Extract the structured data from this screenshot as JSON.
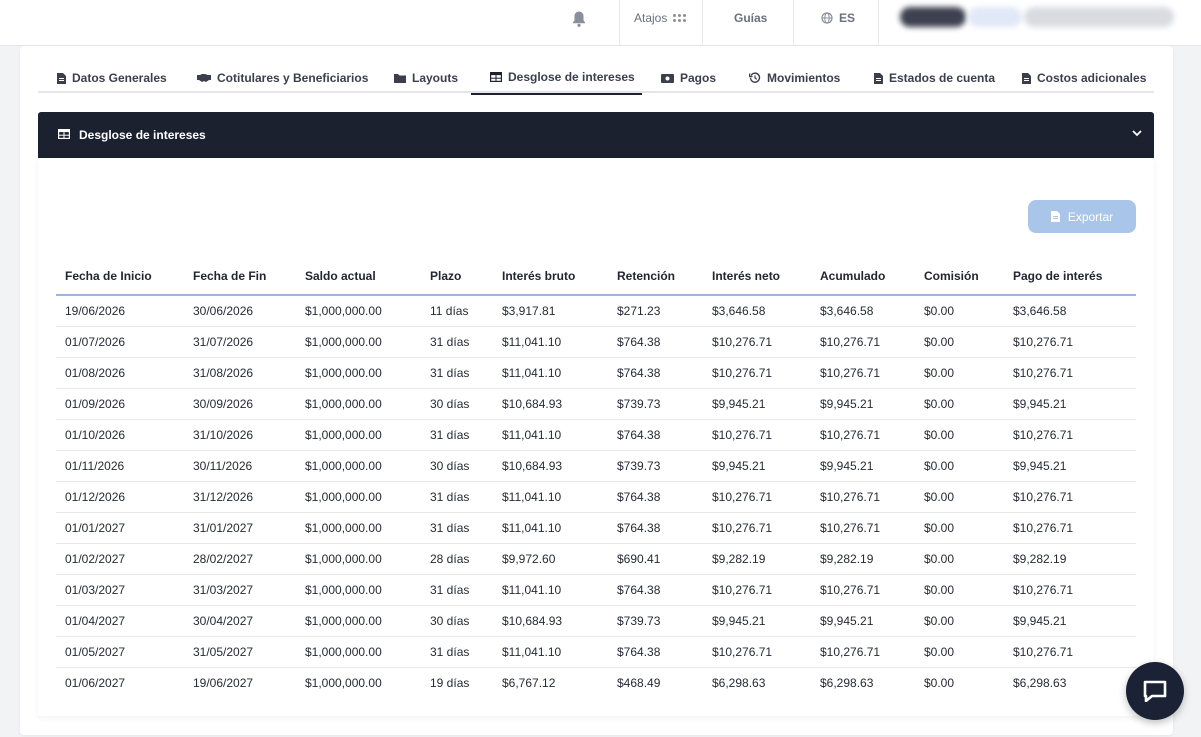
{
  "topbar": {
    "shortcuts_label": "Atajos",
    "guides_label": "Guías",
    "language_label": "ES"
  },
  "tabs": [
    {
      "label": "Datos Generales",
      "icon": "document-icon"
    },
    {
      "label": "Cotitulares y Beneficiarios",
      "icon": "handshake-icon"
    },
    {
      "label": "Layouts",
      "icon": "folder-icon"
    },
    {
      "label": "Desglose de intereses",
      "icon": "table-icon",
      "active": true
    },
    {
      "label": "Pagos",
      "icon": "money-icon"
    },
    {
      "label": "Movimientos",
      "icon": "history-icon"
    },
    {
      "label": "Estados de cuenta",
      "icon": "document-icon"
    },
    {
      "label": "Costos adicionales",
      "icon": "document-icon"
    }
  ],
  "panel": {
    "title": "Desglose de intereses",
    "export_label": "Exportar"
  },
  "table": {
    "headers": [
      "Fecha de Inicio",
      "Fecha de Fin",
      "Saldo actual",
      "Plazo",
      "Interés bruto",
      "Retención",
      "Interés neto",
      "Acumulado",
      "Comisión",
      "Pago de interés"
    ],
    "rows": [
      [
        "19/06/2026",
        "30/06/2026",
        "$1,000,000.00",
        "11 días",
        "$3,917.81",
        "$271.23",
        "$3,646.58",
        "$3,646.58",
        "$0.00",
        "$3,646.58"
      ],
      [
        "01/07/2026",
        "31/07/2026",
        "$1,000,000.00",
        "31 días",
        "$11,041.10",
        "$764.38",
        "$10,276.71",
        "$10,276.71",
        "$0.00",
        "$10,276.71"
      ],
      [
        "01/08/2026",
        "31/08/2026",
        "$1,000,000.00",
        "31 días",
        "$11,041.10",
        "$764.38",
        "$10,276.71",
        "$10,276.71",
        "$0.00",
        "$10,276.71"
      ],
      [
        "01/09/2026",
        "30/09/2026",
        "$1,000,000.00",
        "30 días",
        "$10,684.93",
        "$739.73",
        "$9,945.21",
        "$9,945.21",
        "$0.00",
        "$9,945.21"
      ],
      [
        "01/10/2026",
        "31/10/2026",
        "$1,000,000.00",
        "31 días",
        "$11,041.10",
        "$764.38",
        "$10,276.71",
        "$10,276.71",
        "$0.00",
        "$10,276.71"
      ],
      [
        "01/11/2026",
        "30/11/2026",
        "$1,000,000.00",
        "30 días",
        "$10,684.93",
        "$739.73",
        "$9,945.21",
        "$9,945.21",
        "$0.00",
        "$9,945.21"
      ],
      [
        "01/12/2026",
        "31/12/2026",
        "$1,000,000.00",
        "31 días",
        "$11,041.10",
        "$764.38",
        "$10,276.71",
        "$10,276.71",
        "$0.00",
        "$10,276.71"
      ],
      [
        "01/01/2027",
        "31/01/2027",
        "$1,000,000.00",
        "31 días",
        "$11,041.10",
        "$764.38",
        "$10,276.71",
        "$10,276.71",
        "$0.00",
        "$10,276.71"
      ],
      [
        "01/02/2027",
        "28/02/2027",
        "$1,000,000.00",
        "28 días",
        "$9,972.60",
        "$690.41",
        "$9,282.19",
        "$9,282.19",
        "$0.00",
        "$9,282.19"
      ],
      [
        "01/03/2027",
        "31/03/2027",
        "$1,000,000.00",
        "31 días",
        "$11,041.10",
        "$764.38",
        "$10,276.71",
        "$10,276.71",
        "$0.00",
        "$10,276.71"
      ],
      [
        "01/04/2027",
        "30/04/2027",
        "$1,000,000.00",
        "30 días",
        "$10,684.93",
        "$739.73",
        "$9,945.21",
        "$9,945.21",
        "$0.00",
        "$9,945.21"
      ],
      [
        "01/05/2027",
        "31/05/2027",
        "$1,000,000.00",
        "31 días",
        "$11,041.10",
        "$764.38",
        "$10,276.71",
        "$10,276.71",
        "$0.00",
        "$10,276.71"
      ],
      [
        "01/06/2027",
        "19/06/2027",
        "$1,000,000.00",
        "19 días",
        "$6,767.12",
        "$468.49",
        "$6,298.63",
        "$6,298.63",
        "$0.00",
        "$6,298.63"
      ]
    ]
  },
  "colors": {
    "header_dark": "#1c2130",
    "export_button": "#a9c6ea",
    "chat_button": "#1c2236"
  }
}
